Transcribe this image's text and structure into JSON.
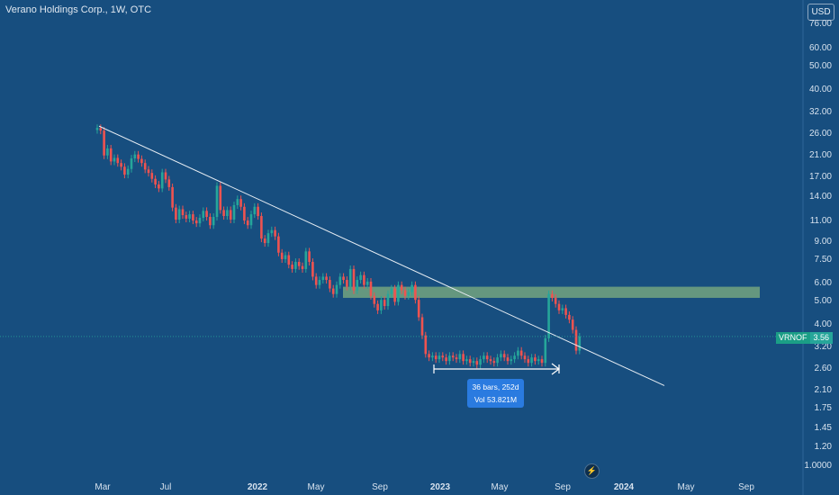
{
  "header": {
    "title": "Verano Holdings Corp., 1W, OTC",
    "currency": "USD"
  },
  "colors": {
    "background": "#174e7f",
    "up": "#26a69a",
    "down": "#ef5350",
    "zone": "#8fbf7f"
  },
  "ticker": {
    "symbol": "VRNOF",
    "price": "3.56"
  },
  "measure": {
    "bars": "36 bars, 252d",
    "volume": "Vol 53.821M"
  },
  "logo_icon": "lightning-logo-icon",
  "chart_data": {
    "type": "candlestick",
    "title": "Verano Holdings Corp., 1W, OTC",
    "xlabel": "",
    "ylabel": "",
    "y_scale": "log",
    "y_ticks": [
      "76.00",
      "60.00",
      "50.00",
      "40.00",
      "32.00",
      "26.00",
      "21.00",
      "17.00",
      "14.00",
      "11.00",
      "9.00",
      "7.50",
      "6.00",
      "5.00",
      "4.00",
      "3.20",
      "2.60",
      "2.10",
      "1.75",
      "1.45",
      "1.20",
      "1.0000"
    ],
    "x_ticks": [
      "Mar",
      "Jul",
      "2022",
      "May",
      "Sep",
      "2023",
      "May",
      "Sep",
      "2024",
      "May",
      "Sep"
    ],
    "bars_close": [
      27.5,
      26.8,
      21.0,
      22.5,
      19.8,
      20.5,
      19.5,
      18.8,
      17.4,
      18.4,
      20.4,
      21.2,
      20.3,
      19.5,
      18.3,
      17.7,
      16.7,
      15.8,
      15.2,
      17.8,
      16.6,
      15.4,
      12.6,
      11.2,
      12.4,
      11.7,
      11.3,
      11.8,
      11.1,
      10.8,
      11.4,
      12.2,
      11.5,
      10.6,
      11.5,
      15.6,
      12.3,
      11.6,
      12.3,
      11.2,
      12.9,
      13.7,
      12.7,
      11.1,
      10.6,
      11.8,
      12.7,
      11.6,
      9.3,
      8.9,
      9.8,
      10.1,
      9.5,
      8.1,
      7.6,
      7.9,
      7.2,
      6.9,
      7.4,
      7.1,
      6.9,
      8.2,
      7.4,
      6.4,
      5.9,
      6.2,
      6.4,
      6.2,
      5.7,
      5.4,
      5.9,
      6.4,
      6.2,
      5.8,
      6.9,
      5.6,
      6.2,
      6.5,
      5.9,
      6.1,
      5.3,
      4.9,
      4.6,
      5.1,
      4.8,
      5.4,
      5.7,
      5.0,
      5.9,
      5.6,
      5.3,
      5.5,
      5.9,
      5.1,
      4.3,
      3.6,
      3.0,
      2.9,
      2.95,
      2.85,
      2.95,
      2.9,
      2.8,
      2.95,
      2.9,
      2.85,
      3.0,
      2.8,
      2.85,
      2.75,
      2.8,
      2.7,
      2.85,
      2.95,
      2.85,
      2.8,
      2.75,
      2.9,
      3.0,
      2.9,
      2.8,
      2.85,
      2.95,
      3.1,
      2.95,
      2.85,
      2.75,
      2.9,
      2.8,
      2.85,
      2.75,
      3.5,
      5.4,
      5.2,
      4.9,
      4.6,
      4.7,
      4.4,
      4.2,
      3.8,
      3.1,
      3.56
    ],
    "trendline": {
      "start_price": 28.0,
      "end_price": 2.2,
      "start_date": "Mar 2021",
      "end_date": "Mar 2024"
    },
    "resistance_zone": [
      5.2,
      5.8
    ],
    "measure": {
      "bars": 36,
      "days": 252,
      "volume": "53.821M"
    },
    "last_price": 3.56
  }
}
